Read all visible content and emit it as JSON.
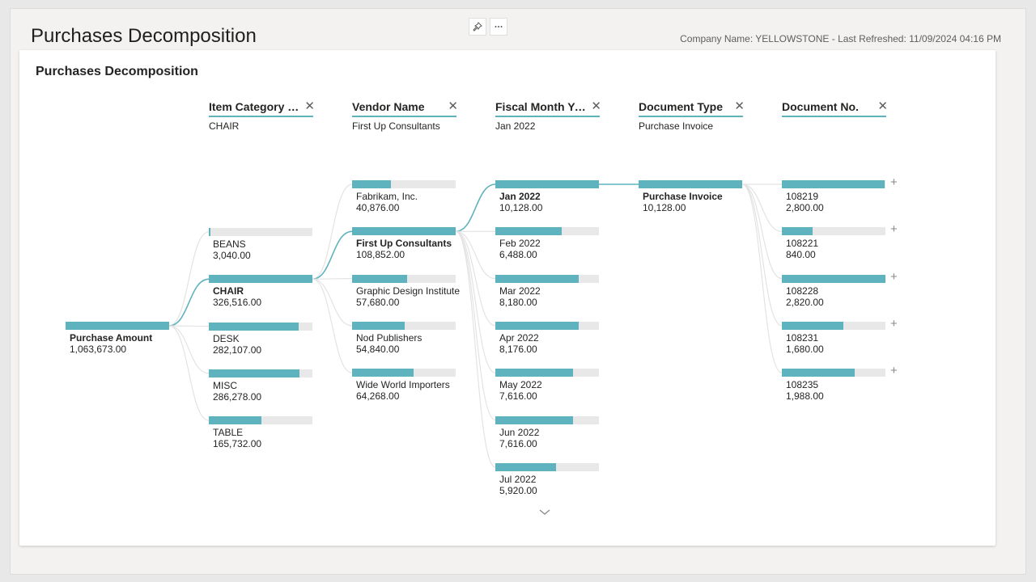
{
  "page": {
    "title": "Purchases Decomposition",
    "meta": "Company Name: YELLOWSTONE - Last Refreshed: 11/09/2024 04:16 PM",
    "icons": [
      "pin-icon",
      "more-options-icon"
    ]
  },
  "card": {
    "title": "Purchases Decomposition"
  },
  "colors": {
    "accent": "#5fb3be",
    "bar_bg": "#e8e8e8",
    "link": "#5fb3be",
    "link_inactive": "#e3e3e3"
  },
  "root": {
    "label": "Purchase Amount",
    "value": "1,063,673.00",
    "fill": 1.0
  },
  "columns": [
    {
      "header": "Item Category C...",
      "filter": "CHAIR"
    },
    {
      "header": "Vendor Name",
      "filter": "First Up Consultants"
    },
    {
      "header": "Fiscal Month Year",
      "filter": "Jan 2022"
    },
    {
      "header": "Document Type",
      "filter": "Purchase Invoice"
    },
    {
      "header": "Document No.",
      "filter": ""
    }
  ],
  "levels": [
    {
      "selected": 1,
      "nodes": [
        {
          "label": "BEANS",
          "value": "3,040.00",
          "fill": 0.009
        },
        {
          "label": "CHAIR",
          "value": "326,516.00",
          "fill": 1.0
        },
        {
          "label": "DESK",
          "value": "282,107.00",
          "fill": 0.864
        },
        {
          "label": "MISC",
          "value": "286,278.00",
          "fill": 0.877
        },
        {
          "label": "TABLE",
          "value": "165,732.00",
          "fill": 0.508
        }
      ]
    },
    {
      "selected": 1,
      "nodes": [
        {
          "label": "Fabrikam, Inc.",
          "value": "40,876.00",
          "fill": 0.376
        },
        {
          "label": "First Up Consultants",
          "value": "108,852.00",
          "fill": 1.0
        },
        {
          "label": "Graphic Design Institute",
          "value": "57,680.00",
          "fill": 0.53
        },
        {
          "label": "Nod Publishers",
          "value": "54,840.00",
          "fill": 0.504
        },
        {
          "label": "Wide World Importers",
          "value": "64,268.00",
          "fill": 0.59
        }
      ]
    },
    {
      "selected": 0,
      "nodes": [
        {
          "label": "Jan 2022",
          "value": "10,128.00",
          "fill": 1.0
        },
        {
          "label": "Feb 2022",
          "value": "6,488.00",
          "fill": 0.641
        },
        {
          "label": "Mar 2022",
          "value": "8,180.00",
          "fill": 0.808
        },
        {
          "label": "Apr 2022",
          "value": "8,176.00",
          "fill": 0.807
        },
        {
          "label": "May 2022",
          "value": "7,616.00",
          "fill": 0.752
        },
        {
          "label": "Jun 2022",
          "value": "7,616.00",
          "fill": 0.752
        },
        {
          "label": "Jul 2022",
          "value": "5,920.00",
          "fill": 0.585
        }
      ]
    },
    {
      "selected": 0,
      "nodes": [
        {
          "label": "Purchase Invoice",
          "value": "10,128.00",
          "fill": 1.0
        }
      ]
    },
    {
      "selected": -1,
      "nodes": [
        {
          "label": "108219",
          "value": "2,800.00",
          "fill": 0.993
        },
        {
          "label": "108221",
          "value": "840.00",
          "fill": 0.298
        },
        {
          "label": "108228",
          "value": "2,820.00",
          "fill": 1.0
        },
        {
          "label": "108231",
          "value": "1,680.00",
          "fill": 0.596
        },
        {
          "label": "108235",
          "value": "1,988.00",
          "fill": 0.705
        }
      ]
    }
  ]
}
